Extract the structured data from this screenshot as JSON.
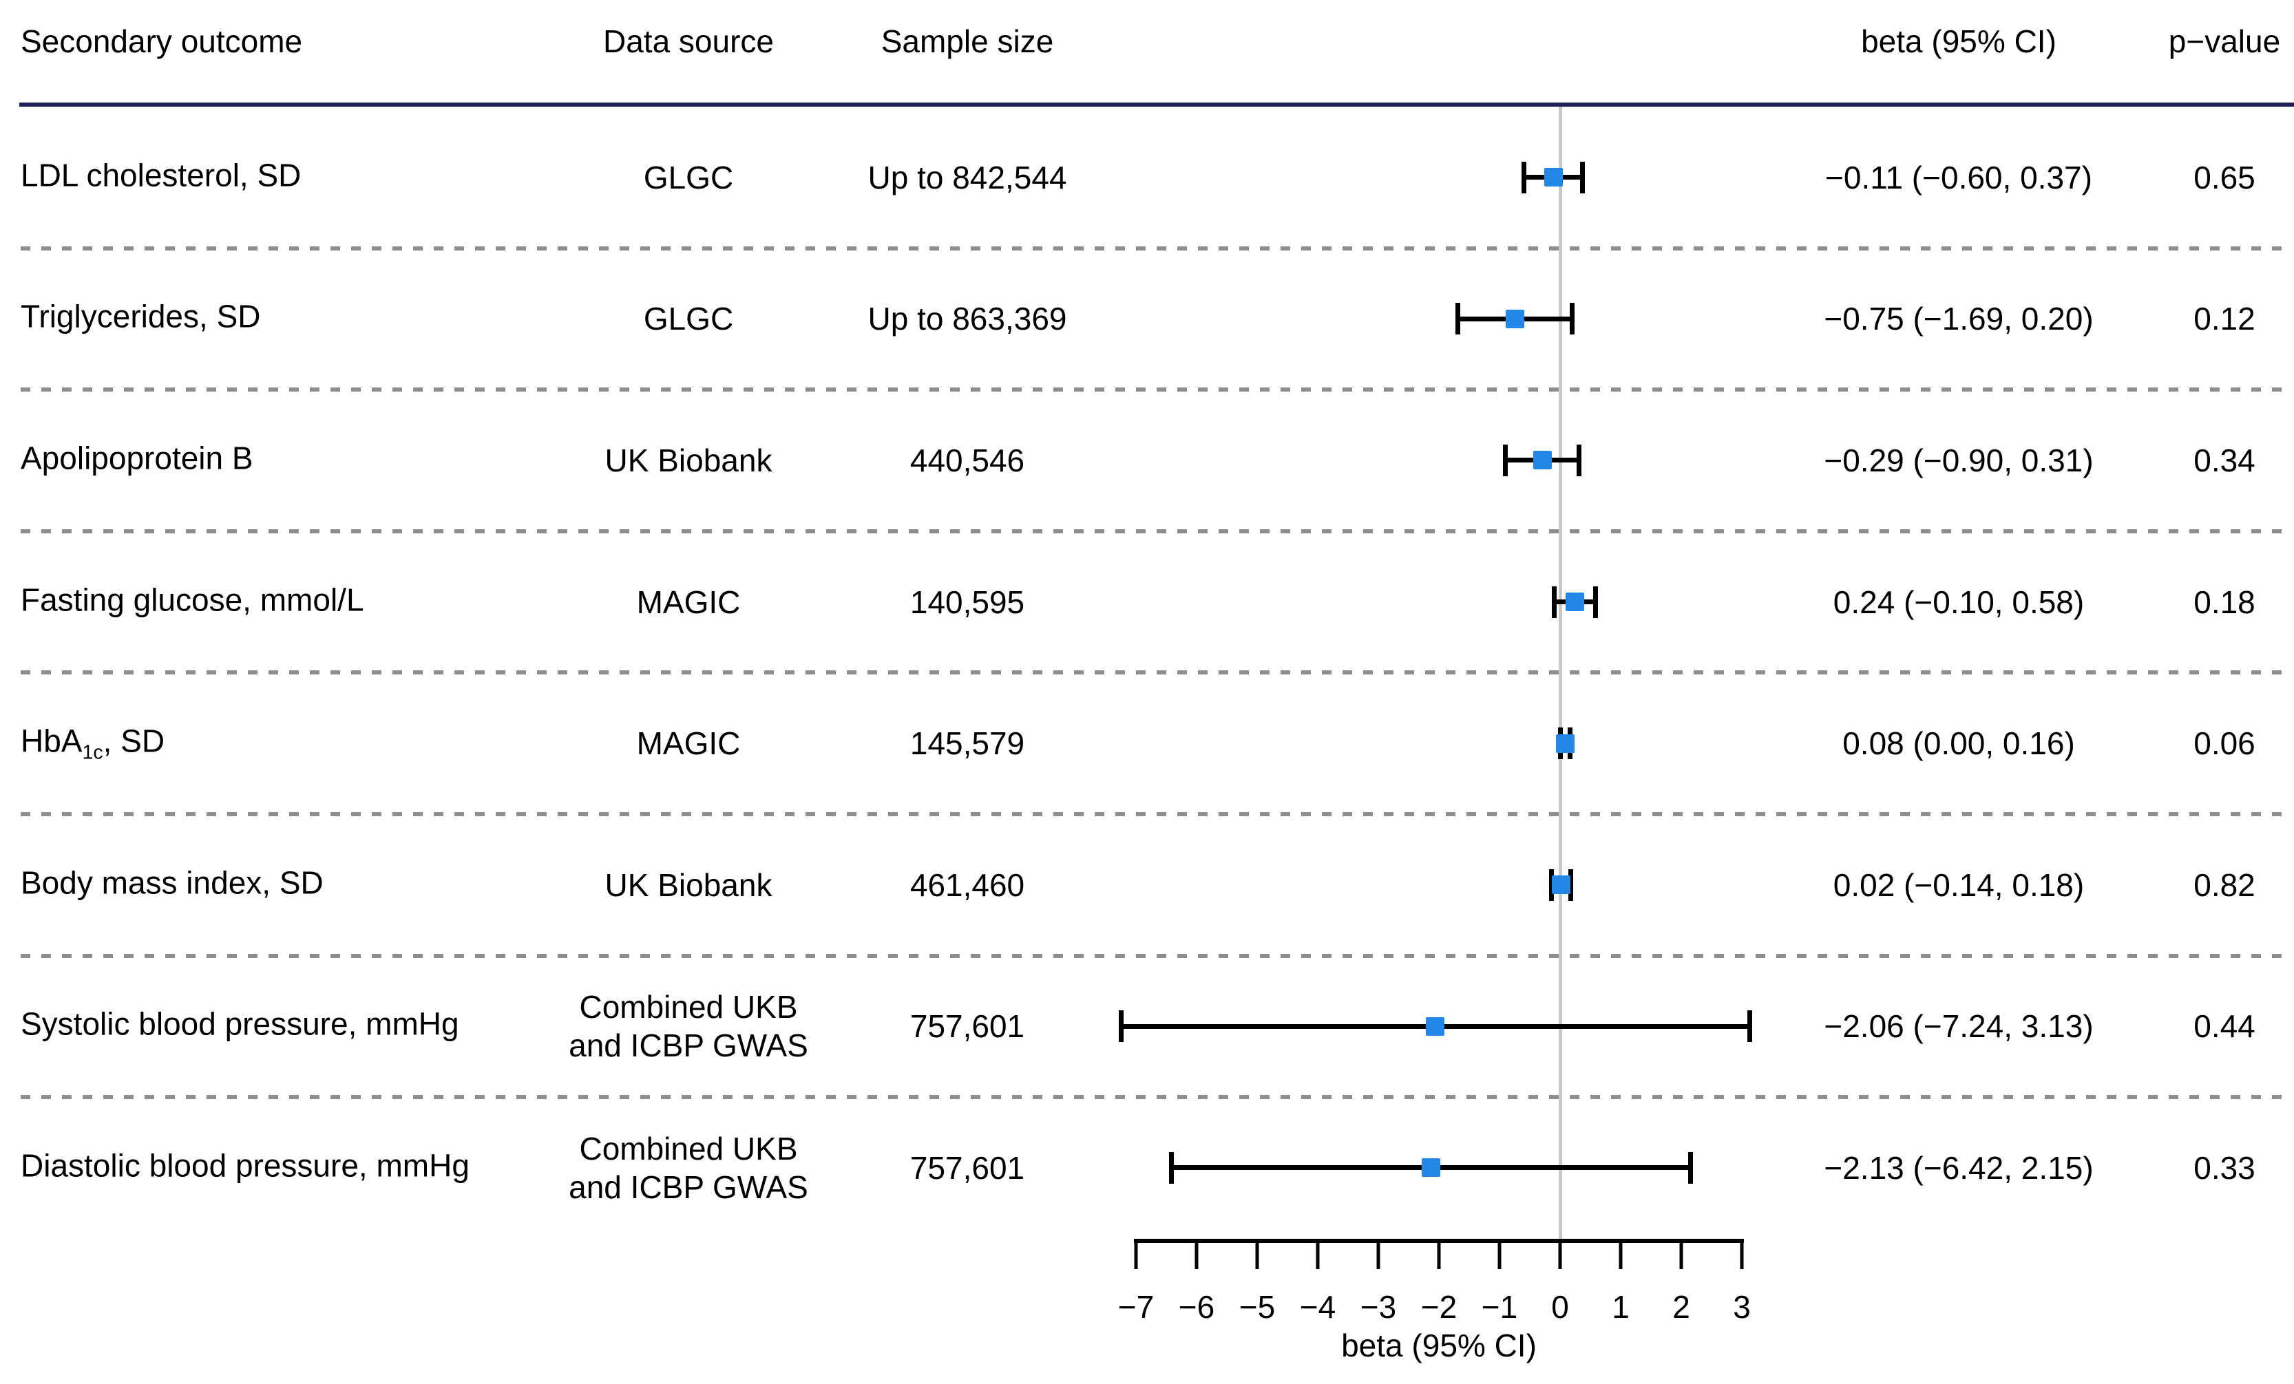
{
  "table": {
    "headers": {
      "outcome": "Secondary outcome",
      "source": "Data source",
      "sample": "Sample size",
      "beta": "beta (95% CI)",
      "pvalue": "p−value"
    },
    "rows": [
      {
        "outcome_pre": "LDL cholesterol, SD",
        "outcome_sub": "",
        "outcome_post": "",
        "source_line1": "GLGC",
        "source_line2": "",
        "sample": "Up to 842,544",
        "beta_text": "−0.11 (−0.60, 0.37)",
        "pvalue": "0.65"
      },
      {
        "outcome_pre": "Triglycerides, SD",
        "outcome_sub": "",
        "outcome_post": "",
        "source_line1": "GLGC",
        "source_line2": "",
        "sample": "Up to 863,369",
        "beta_text": "−0.75 (−1.69, 0.20)",
        "pvalue": "0.12"
      },
      {
        "outcome_pre": "Apolipoprotein B",
        "outcome_sub": "",
        "outcome_post": "",
        "source_line1": "UK Biobank",
        "source_line2": "",
        "sample": "440,546",
        "beta_text": "−0.29 (−0.90, 0.31)",
        "pvalue": "0.34"
      },
      {
        "outcome_pre": "Fasting glucose, mmol/L",
        "outcome_sub": "",
        "outcome_post": "",
        "source_line1": "MAGIC",
        "source_line2": "",
        "sample": "140,595",
        "beta_text": "0.24 (−0.10, 0.58)",
        "pvalue": "0.18"
      },
      {
        "outcome_pre": "HbA",
        "outcome_sub": "1c",
        "outcome_post": ", SD",
        "source_line1": "MAGIC",
        "source_line2": "",
        "sample": "145,579",
        "beta_text": "0.08 (0.00, 0.16)",
        "pvalue": "0.06"
      },
      {
        "outcome_pre": "Body mass index, SD",
        "outcome_sub": "",
        "outcome_post": "",
        "source_line1": "UK Biobank",
        "source_line2": "",
        "sample": "461,460",
        "beta_text": "0.02 (−0.14, 0.18)",
        "pvalue": "0.82"
      },
      {
        "outcome_pre": "Systolic blood pressure, mmHg",
        "outcome_sub": "",
        "outcome_post": "",
        "source_line1": "Combined UKB",
        "source_line2": "and ICBP GWAS",
        "sample": "757,601",
        "beta_text": "−2.06 (−7.24, 3.13)",
        "pvalue": "0.44"
      },
      {
        "outcome_pre": "Diastolic blood pressure, mmHg",
        "outcome_sub": "",
        "outcome_post": "",
        "source_line1": "Combined UKB",
        "source_line2": "and ICBP GWAS",
        "sample": "757,601",
        "beta_text": "−2.13 (−6.42, 2.15)",
        "pvalue": "0.33"
      }
    ]
  },
  "chart_data": {
    "type": "scatter",
    "variant": "forest-plot",
    "title": "",
    "xlabel": "beta (95% CI)",
    "xlim": [
      -7,
      3
    ],
    "xticks": [
      -7,
      -6,
      -5,
      -4,
      -3,
      -2,
      -1,
      0,
      1,
      2,
      3
    ],
    "xtick_labels": [
      "−7",
      "−6",
      "−5",
      "−4",
      "−3",
      "−2",
      "−1",
      "0",
      "1",
      "2",
      "3"
    ],
    "reference_line_x": 0,
    "grid": false,
    "legend": "none",
    "categories": [
      "LDL cholesterol, SD",
      "Triglycerides, SD",
      "Apolipoprotein B",
      "Fasting glucose, mmol/L",
      "HbA1c, SD",
      "Body mass index, SD",
      "Systolic blood pressure, mmHg",
      "Diastolic blood pressure, mmHg"
    ],
    "series": [
      {
        "name": "beta",
        "values": [
          -0.11,
          -0.75,
          -0.29,
          0.24,
          0.08,
          0.02,
          -2.06,
          -2.13
        ]
      },
      {
        "name": "ci_lower",
        "values": [
          -0.6,
          -1.69,
          -0.9,
          -0.1,
          0.0,
          -0.14,
          -7.24,
          -6.42
        ]
      },
      {
        "name": "ci_upper",
        "values": [
          0.37,
          0.2,
          0.31,
          0.58,
          0.16,
          0.18,
          3.13,
          2.15
        ]
      },
      {
        "name": "p_value",
        "values": [
          0.65,
          0.12,
          0.34,
          0.18,
          0.06,
          0.82,
          0.44,
          0.33
        ]
      }
    ],
    "marker": {
      "shape": "square",
      "color": "#2287E6"
    }
  },
  "colors": {
    "header_rule": "#20205F",
    "dashed_separator": "#8E8E8E",
    "reference_line": "#C9C9C9",
    "ci_line": "#000000",
    "marker": "#2287E6",
    "text": "#000000",
    "background": "#FFFFFF"
  }
}
